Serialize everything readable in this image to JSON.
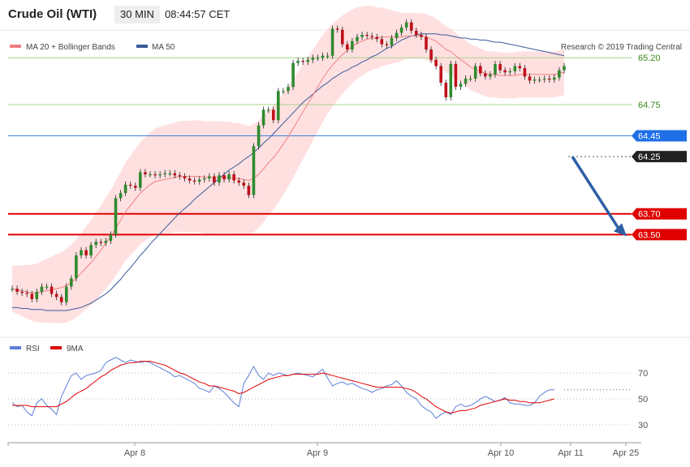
{
  "header": {
    "instrument": "Crude Oil (WTI)",
    "timeframe": "30 MIN",
    "time": "08:44:57 CET"
  },
  "legend": {
    "ma20": "MA 20 + Bollinger Bands",
    "ma50": "MA 50",
    "credit": "Research © 2019 Trading Central"
  },
  "rsi_legend": {
    "rsi": "RSI",
    "ma9": "9MA"
  },
  "colors": {
    "bull": "#2e8b2e",
    "bear": "#c0101a",
    "ma20": "#f08080",
    "ma50": "#3a5a9a",
    "band_fill": "#ffd6d6",
    "resistance_green": "#a7d48a",
    "blue_line": "#3f7fe0",
    "support_red": "#e00000",
    "arrow": "#2f5fa5",
    "rsi": "#5b7fd8",
    "rsi_ma": "#e00000"
  },
  "chart_data": {
    "type": "candlestick",
    "y_range": [
      62.7,
      65.35
    ],
    "levels": [
      {
        "value": 65.2,
        "label": "65.20",
        "kind": "resistance"
      },
      {
        "value": 64.75,
        "label": "64.75",
        "kind": "resistance"
      },
      {
        "value": 64.45,
        "label": "64.45",
        "kind": "pivot"
      },
      {
        "value": 64.25,
        "label": "64.25",
        "kind": "current"
      },
      {
        "value": 63.7,
        "label": "63.70",
        "kind": "support"
      },
      {
        "value": 63.5,
        "label": "63.50",
        "kind": "support"
      }
    ],
    "x_labels": [
      "Apr 8",
      "Apr 9",
      "Apr 10",
      "Apr 11",
      "Apr 25"
    ],
    "closes": [
      62.98,
      62.95,
      62.94,
      62.93,
      62.88,
      62.95,
      63.0,
      63.0,
      62.93,
      62.9,
      62.85,
      63.0,
      63.08,
      63.3,
      63.35,
      63.3,
      63.4,
      63.43,
      63.42,
      63.44,
      63.5,
      63.85,
      63.9,
      63.98,
      63.97,
      63.95,
      64.1,
      64.08,
      64.08,
      64.07,
      64.08,
      64.09,
      64.09,
      64.07,
      64.06,
      64.04,
      64.02,
      64.01,
      64.03,
      64.04,
      64.06,
      64.0,
      64.07,
      64.03,
      64.08,
      64.02,
      64.0,
      63.97,
      63.88,
      64.35,
      64.55,
      64.7,
      64.7,
      64.6,
      64.88,
      64.88,
      64.92,
      65.15,
      65.17,
      65.16,
      65.18,
      65.2,
      65.2,
      65.22,
      65.22,
      65.48,
      65.47,
      65.33,
      65.28,
      65.36,
      65.4,
      65.42,
      65.41,
      65.4,
      65.38,
      65.33,
      65.32,
      65.39,
      65.44,
      65.49,
      65.54,
      65.46,
      65.42,
      65.4,
      65.28,
      65.18,
      65.12,
      64.96,
      64.82,
      65.14,
      64.92,
      64.95,
      65.0,
      65.0,
      65.12,
      65.05,
      65.02,
      65.04,
      65.14,
      65.08,
      65.06,
      65.07,
      65.12,
      65.1,
      65.02,
      64.98,
      64.99,
      64.99,
      65.0,
      64.99,
      65.01,
      65.08,
      65.12
    ],
    "ma20": [
      62.98,
      62.97,
      62.96,
      62.95,
      62.94,
      62.94,
      62.95,
      62.96,
      62.97,
      62.98,
      62.99,
      63.01,
      63.04,
      63.08,
      63.13,
      63.18,
      63.23,
      63.29,
      63.35,
      63.42,
      63.48,
      63.56,
      63.64,
      63.72,
      63.78,
      63.84,
      63.9,
      63.94,
      63.98,
      64.01,
      64.02,
      64.03,
      64.04,
      64.05,
      64.06,
      64.06,
      64.06,
      64.06,
      64.06,
      64.05,
      64.05,
      64.05,
      64.05,
      64.05,
      64.05,
      64.04,
      64.04,
      64.03,
      64.02,
      64.04,
      64.08,
      64.13,
      64.19,
      64.24,
      64.3,
      64.37,
      64.44,
      64.52,
      64.6,
      64.68,
      64.76,
      64.84,
      64.92,
      65.0,
      65.07,
      65.13,
      65.18,
      65.23,
      65.27,
      65.31,
      65.34,
      65.36,
      65.38,
      65.39,
      65.39,
      65.4,
      65.4,
      65.4,
      65.4,
      65.4,
      65.41,
      65.41,
      65.41,
      65.41,
      65.4,
      65.38,
      65.36,
      65.32,
      65.28,
      65.26,
      65.22,
      65.18,
      65.15,
      65.11,
      65.09,
      65.07,
      65.05,
      65.04,
      65.04,
      65.03,
      65.03,
      65.03,
      65.03,
      65.04,
      65.04,
      65.04,
      65.04,
      65.04,
      65.04,
      65.04,
      65.04,
      65.05,
      65.06
    ],
    "ma50": [
      62.8,
      62.8,
      62.79,
      62.79,
      62.78,
      62.78,
      62.78,
      62.77,
      62.77,
      62.77,
      62.77,
      62.77,
      62.78,
      62.79,
      62.8,
      62.82,
      62.84,
      62.87,
      62.9,
      62.93,
      62.97,
      63.02,
      63.07,
      63.13,
      63.18,
      63.24,
      63.3,
      63.35,
      63.41,
      63.46,
      63.51,
      63.56,
      63.61,
      63.66,
      63.71,
      63.75,
      63.79,
      63.84,
      63.88,
      63.92,
      63.96,
      64.0,
      64.04,
      64.08,
      64.12,
      64.15,
      64.18,
      64.22,
      64.25,
      64.29,
      64.33,
      64.38,
      64.42,
      64.47,
      64.52,
      64.57,
      64.62,
      64.67,
      64.72,
      64.77,
      64.81,
      64.85,
      64.89,
      64.93,
      64.96,
      65.0,
      65.03,
      65.06,
      65.08,
      65.11,
      65.13,
      65.16,
      65.18,
      65.21,
      65.23,
      65.26,
      65.29,
      65.31,
      65.34,
      65.37,
      65.39,
      65.41,
      65.42,
      65.43,
      65.43,
      65.43,
      65.43,
      65.42,
      65.42,
      65.41,
      65.4,
      65.39,
      65.39,
      65.38,
      65.38,
      65.37,
      65.37,
      65.36,
      65.35,
      65.35,
      65.34,
      65.33,
      65.32,
      65.31,
      65.3,
      65.29,
      65.28,
      65.27,
      65.26,
      65.25,
      65.24,
      65.23,
      65.22
    ],
    "rsi": {
      "levels": [
        70,
        50,
        30
      ],
      "rsi": [
        47,
        44,
        45,
        40,
        37,
        47,
        50,
        45,
        42,
        38,
        52,
        60,
        68,
        70,
        65,
        68,
        69,
        70,
        72,
        78,
        80,
        82,
        80,
        78,
        80,
        79,
        78,
        79,
        78,
        76,
        74,
        72,
        70,
        67,
        68,
        66,
        64,
        62,
        58,
        57,
        55,
        60,
        58,
        55,
        51,
        47,
        44,
        62,
        68,
        75,
        68,
        65,
        70,
        68,
        70,
        69,
        68,
        69,
        70,
        69,
        68,
        67,
        70,
        73,
        66,
        60,
        62,
        63,
        61,
        62,
        60,
        58,
        57,
        55,
        57,
        58,
        60,
        61,
        64,
        60,
        55,
        52,
        50,
        45,
        42,
        40,
        35,
        38,
        40,
        38,
        44,
        46,
        44,
        45,
        47,
        50,
        52,
        50,
        48,
        49,
        51,
        47,
        46,
        46,
        45,
        45,
        47,
        52,
        55,
        57,
        57
      ],
      "ma9": [
        45,
        45,
        45,
        45,
        44,
        44,
        44,
        44,
        44,
        44,
        46,
        48,
        51,
        54,
        56,
        58,
        61,
        64,
        67,
        69,
        72,
        74,
        76,
        77,
        78,
        78,
        79,
        79,
        79,
        78,
        77,
        76,
        74,
        72,
        70,
        69,
        67,
        65,
        63,
        62,
        60,
        60,
        59,
        58,
        57,
        56,
        54,
        55,
        57,
        59,
        61,
        63,
        65,
        66,
        67,
        68,
        68,
        69,
        69,
        69,
        69,
        69,
        69,
        70,
        69,
        68,
        67,
        66,
        65,
        64,
        63,
        62,
        61,
        60,
        59,
        59,
        59,
        59,
        59,
        59,
        58,
        57,
        55,
        52,
        50,
        47,
        44,
        42,
        40,
        39,
        40,
        41,
        41,
        42,
        43,
        45,
        46,
        47,
        48,
        49,
        50,
        49,
        49,
        48,
        48,
        47,
        47,
        47,
        48,
        49,
        50
      ]
    }
  }
}
